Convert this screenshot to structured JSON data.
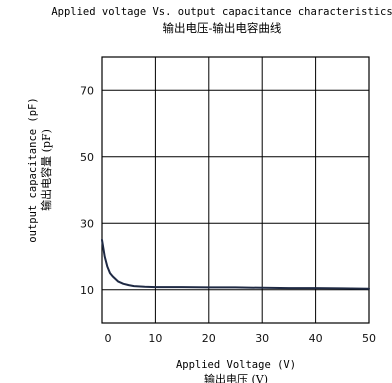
{
  "chart_data": {
    "type": "line",
    "title": "Applied voltage Vs. output capacitance characteristics",
    "subtitle": "输出电压-输出电容曲线",
    "xlabel": "Applied Voltage (V)",
    "xlabel_cn": "输出电压 (V)",
    "ylabel": "output capacitance (pF)",
    "ylabel_cn": "输出电容量 (pF)",
    "xlim": [
      0,
      50
    ],
    "ylim": [
      0,
      80
    ],
    "x_ticks": [
      0,
      10,
      20,
      30,
      40,
      50
    ],
    "y_ticks": [
      10,
      30,
      50,
      70
    ],
    "grid": true,
    "colors": {
      "line": "#1f2a44",
      "grid": "#000000"
    },
    "series": [
      {
        "x": [
          0,
          0.5,
          1,
          1.5,
          2,
          3,
          4,
          5,
          6,
          8,
          10,
          15,
          20,
          25,
          30,
          35,
          40,
          45,
          50
        ],
        "y": [
          25,
          20,
          17,
          15,
          14,
          12.5,
          11.8,
          11.4,
          11.1,
          10.9,
          10.8,
          10.8,
          10.7,
          10.7,
          10.6,
          10.5,
          10.5,
          10.4,
          10.3
        ]
      }
    ]
  }
}
